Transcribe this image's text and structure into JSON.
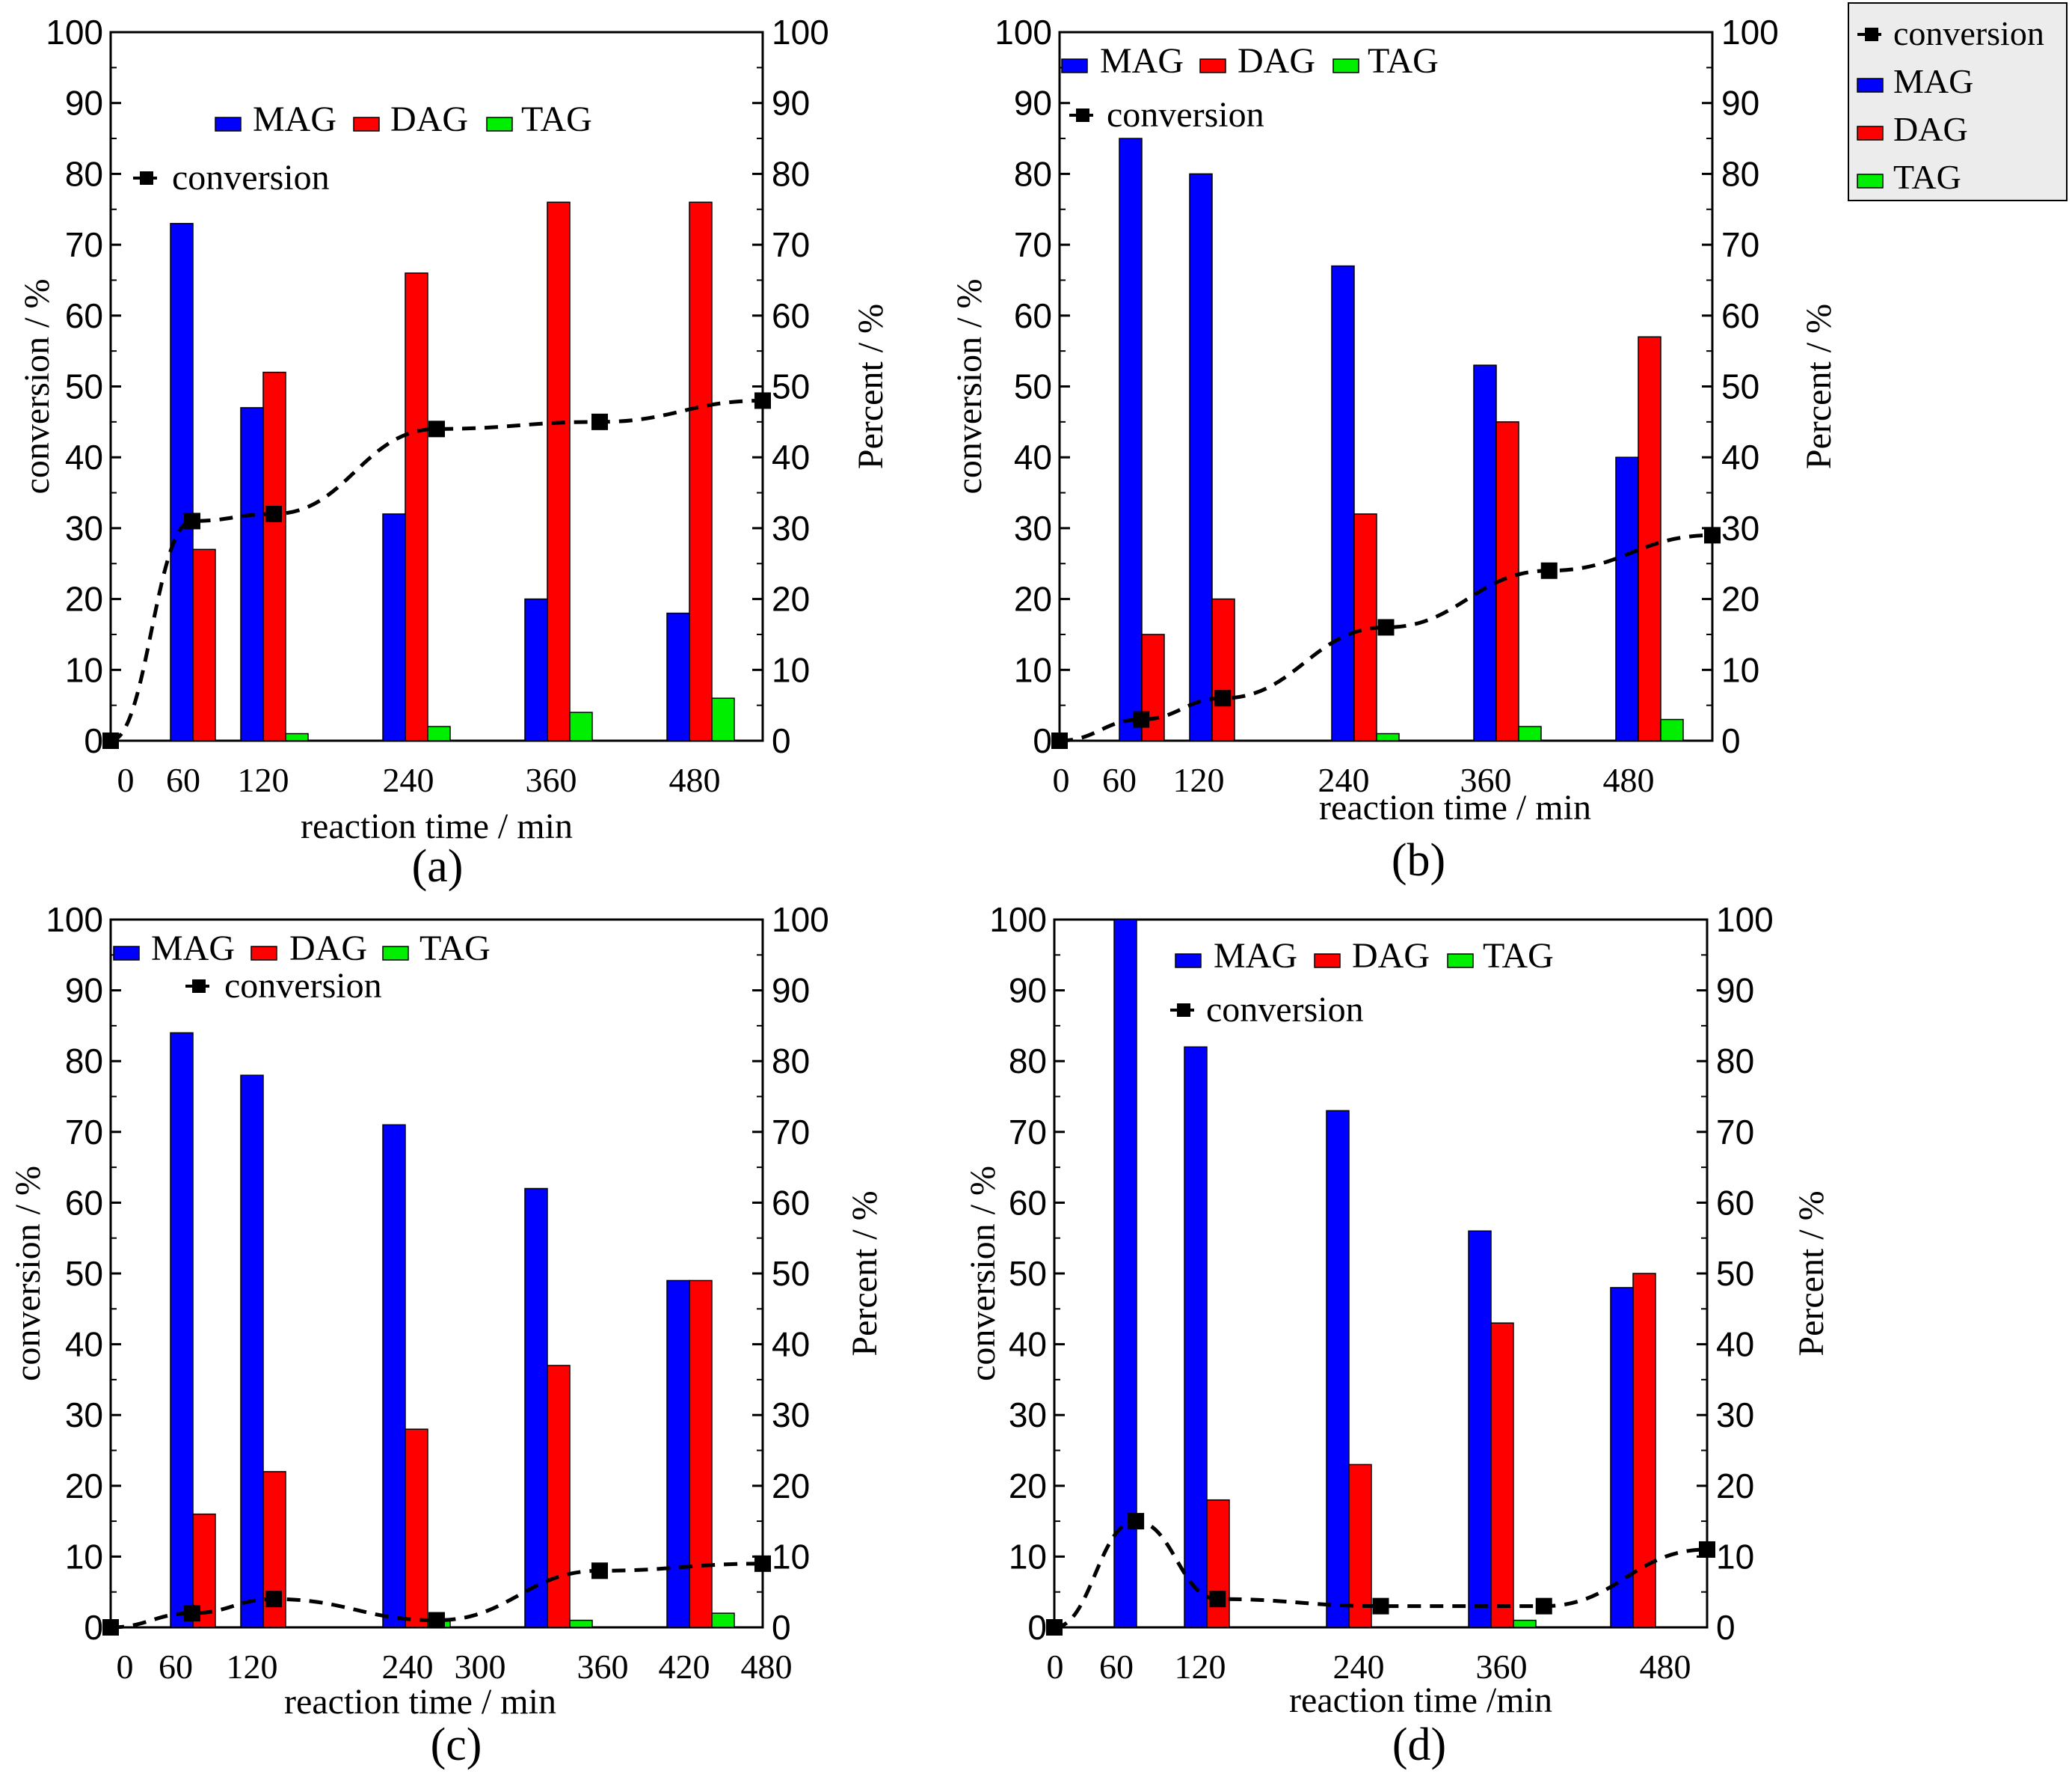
{
  "colors": {
    "MAG": "#0000ff",
    "DAG": "#ff0000",
    "TAG": "#00ee00",
    "conversion": "#000000",
    "legend_bg": "#ececec"
  },
  "global_legend": {
    "items": [
      {
        "key": "conversion",
        "label": "conversion"
      },
      {
        "key": "MAG",
        "label": "MAG"
      },
      {
        "key": "DAG",
        "label": "DAG"
      },
      {
        "key": "TAG",
        "label": "TAG"
      }
    ]
  },
  "chart_data": [
    {
      "type": "bar",
      "panel_label": "(a)",
      "xlabel": "reaction time / min",
      "ylabel_left": "conversion / %",
      "ylabel_right": "Percent / %",
      "ylim": [
        0,
        100
      ],
      "yticks": [
        0,
        10,
        20,
        30,
        40,
        50,
        60,
        70,
        80,
        90,
        100
      ],
      "xlim": [
        0,
        480
      ],
      "xtick_labels": [
        "0",
        "60",
        "120",
        "240",
        "360",
        "480"
      ],
      "categories": [
        "60",
        "120",
        "240",
        "360",
        "480"
      ],
      "series": [
        {
          "name": "MAG",
          "values": [
            73,
            47,
            32,
            20,
            18
          ]
        },
        {
          "name": "DAG",
          "values": [
            27,
            52,
            66,
            76,
            76
          ]
        },
        {
          "name": "TAG",
          "values": [
            0,
            1,
            2,
            4,
            6
          ]
        }
      ],
      "conversion": {
        "name": "conversion",
        "points": [
          [
            0,
            0
          ],
          [
            60,
            31
          ],
          [
            120,
            32
          ],
          [
            240,
            44
          ],
          [
            360,
            45
          ],
          [
            480,
            48
          ]
        ]
      },
      "legend": {
        "bars_label": [
          "MAG",
          "DAG",
          "TAG"
        ],
        "line_label": "conversion"
      }
    },
    {
      "type": "bar",
      "panel_label": "(b)",
      "xlabel": "reaction time / min",
      "ylabel_left": "conversion / %",
      "ylabel_right": "Percent / %",
      "ylim": [
        0,
        100
      ],
      "yticks": [
        0,
        10,
        20,
        30,
        40,
        50,
        60,
        70,
        80,
        90,
        100
      ],
      "xlim": [
        0,
        480
      ],
      "xtick_labels": [
        "0",
        "60",
        "120",
        "240",
        "360",
        "480"
      ],
      "categories": [
        "60",
        "120",
        "240",
        "360",
        "480"
      ],
      "series": [
        {
          "name": "MAG",
          "values": [
            85,
            80,
            67,
            53,
            40
          ]
        },
        {
          "name": "DAG",
          "values": [
            15,
            20,
            32,
            45,
            57
          ]
        },
        {
          "name": "TAG",
          "values": [
            0,
            0,
            1,
            2,
            3
          ]
        }
      ],
      "conversion": {
        "name": "conversion",
        "points": [
          [
            0,
            0
          ],
          [
            60,
            3
          ],
          [
            120,
            6
          ],
          [
            240,
            16
          ],
          [
            360,
            24
          ],
          [
            480,
            29
          ]
        ]
      },
      "legend": {
        "bars_label": [
          "MAG",
          "DAG",
          "TAG"
        ],
        "line_label": "conversion"
      }
    },
    {
      "type": "bar",
      "panel_label": "(c)",
      "xlabel": "reaction time / min",
      "ylabel_left": "conversion / %",
      "ylabel_right": "Percent / %",
      "ylim": [
        0,
        100
      ],
      "yticks": [
        0,
        10,
        20,
        30,
        40,
        50,
        60,
        70,
        80,
        90,
        100
      ],
      "xlim": [
        0,
        480
      ],
      "xtick_labels": [
        "0",
        "60",
        "120",
        "240",
        "300",
        "360",
        "420",
        "480"
      ],
      "categories": [
        "60",
        "120",
        "240",
        "300",
        "420"
      ],
      "series": [
        {
          "name": "MAG",
          "values": [
            84,
            78,
            71,
            62,
            49
          ]
        },
        {
          "name": "DAG",
          "values": [
            16,
            22,
            28,
            37,
            49
          ]
        },
        {
          "name": "TAG",
          "values": [
            0,
            0,
            1,
            1,
            2
          ]
        }
      ],
      "conversion": {
        "name": "conversion",
        "points": [
          [
            0,
            0
          ],
          [
            60,
            2
          ],
          [
            120,
            4
          ],
          [
            240,
            1
          ],
          [
            360,
            8
          ],
          [
            480,
            9
          ]
        ]
      },
      "legend": {
        "bars_label": [
          "MAG",
          "DAG",
          "TAG"
        ],
        "line_label": "conversion"
      }
    },
    {
      "type": "bar",
      "panel_label": "(d)",
      "xlabel": "reaction time /min",
      "ylabel_left": "conversion / %",
      "ylabel_right": "Percent / %",
      "ylim": [
        0,
        100
      ],
      "yticks": [
        0,
        10,
        20,
        30,
        40,
        50,
        60,
        70,
        80,
        90,
        100
      ],
      "xlim": [
        0,
        480
      ],
      "xtick_labels": [
        "0",
        "60",
        "120",
        "240",
        "360",
        "480"
      ],
      "categories": [
        "60",
        "120",
        "240",
        "360",
        "480"
      ],
      "series": [
        {
          "name": "MAG",
          "values": [
            100,
            82,
            73,
            56,
            48
          ]
        },
        {
          "name": "DAG",
          "values": [
            0,
            18,
            23,
            43,
            50
          ]
        },
        {
          "name": "TAG",
          "values": [
            0,
            0,
            0,
            1,
            0
          ]
        }
      ],
      "conversion": {
        "name": "conversion",
        "points": [
          [
            0,
            0
          ],
          [
            60,
            15
          ],
          [
            120,
            4
          ],
          [
            240,
            3
          ],
          [
            360,
            3
          ],
          [
            480,
            11
          ]
        ]
      },
      "legend": {
        "bars_label": [
          "MAG",
          "DAG",
          "TAG"
        ],
        "line_label": "conversion"
      }
    }
  ]
}
